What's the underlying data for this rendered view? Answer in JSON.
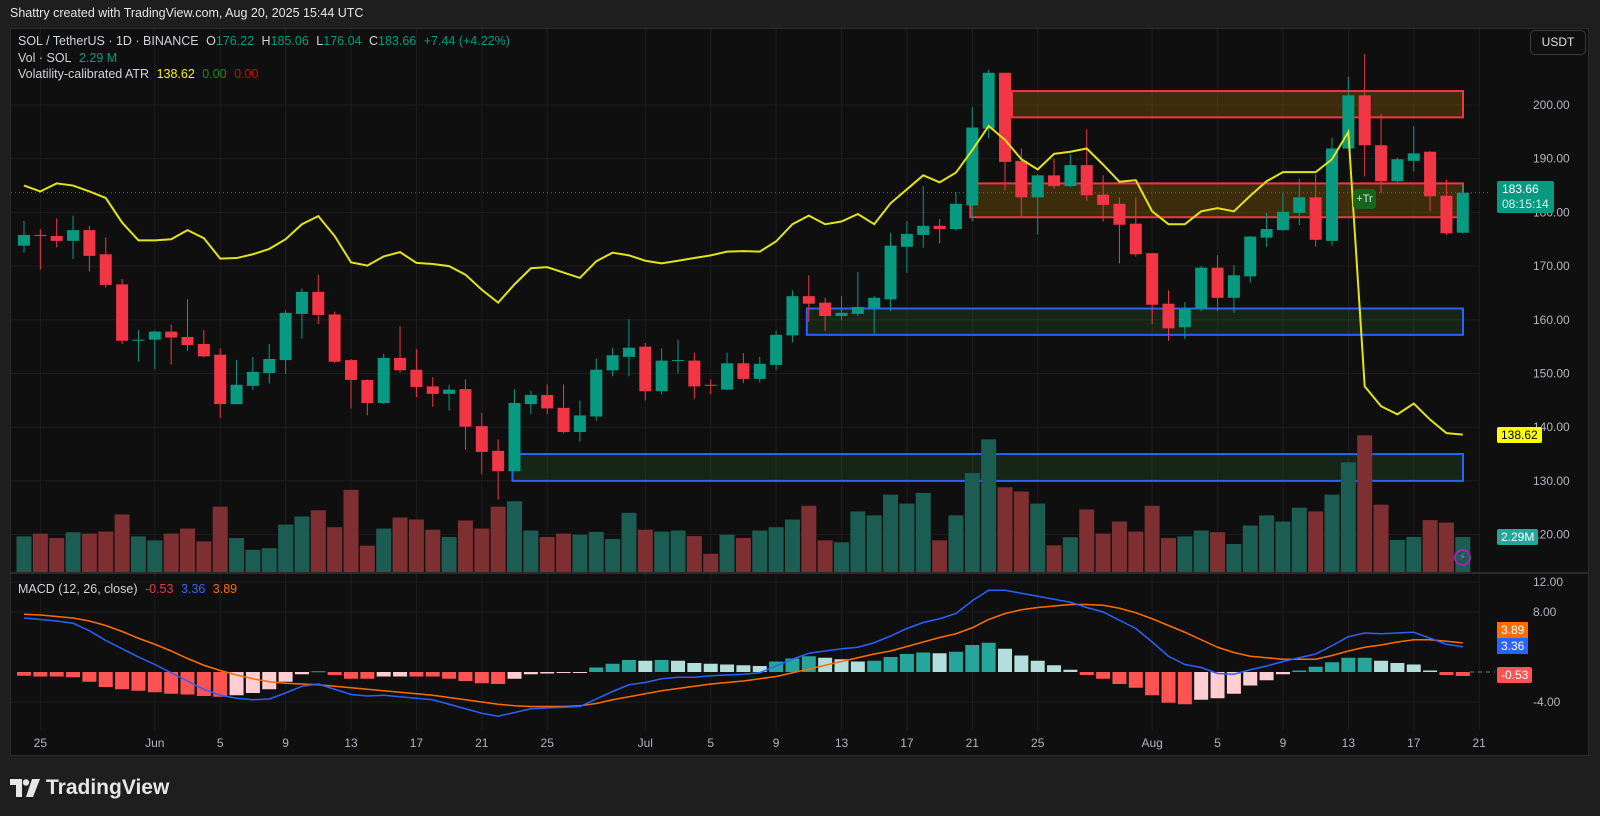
{
  "header": {
    "attribution": "Shattry created with TradingView.com, Aug 20, 2025 15:44 UTC"
  },
  "legend": {
    "symbol": "SOL / TetherUS · 1D · BINANCE",
    "o_label": "O",
    "o": "176.22",
    "h_label": "H",
    "h": "185.06",
    "l_label": "L",
    "l": "176.04",
    "c_label": "C",
    "c": "183.66",
    "change": "+7.44 (+4.22%)",
    "vol_label": "Vol · SOL",
    "vol": "2.29 M",
    "atr_label": "Volatility-calibrated ATR",
    "atr": "138.62",
    "atr_v2": "0.00",
    "atr_v3": "0.00",
    "macd_label": "MACD (12, 26, close)",
    "macd_hist": "-0.53",
    "macd": "3.36",
    "macd_signal": "3.89"
  },
  "toolbar": {
    "currency": "USDT"
  },
  "badges": {
    "trade": "+Tr",
    "price": "183.66",
    "countdown": "08:15:14",
    "atr": "138.62",
    "volume": "2.29M",
    "macd_signal": "3.89",
    "macd": "3.36",
    "macd_hist": "-0.53"
  },
  "footer": {
    "brand": "TradingView"
  },
  "colors": {
    "up": "#089981",
    "down": "#f23645",
    "vol_up": "#1b5c53",
    "vol_down": "#7d2f32",
    "atr": "#e3e31a",
    "macd": "#2962ff",
    "signal": "#ff6d00",
    "hist_up_strong": "#26a69a",
    "hist_up_weak": "#b2dfdb",
    "hist_down_strong": "#ff5252",
    "hist_down_weak": "#ffcdd2",
    "zone_red": "#f23645",
    "zone_blue": "#2962ff"
  },
  "chart_data": [
    {
      "type": "candlestick",
      "timeframe": "1D",
      "price_axis": {
        "ticks": [
          200,
          190,
          180,
          170,
          160,
          150,
          140,
          130,
          120
        ],
        "labels": [
          "200.00",
          "190.00",
          "180.00",
          "170.00",
          "160.00",
          "150.00",
          "140.00",
          "130.00",
          "120.00"
        ]
      },
      "x_ticks": [
        [
          "2025-05-25",
          "25"
        ],
        [
          "2025-06-01",
          "Jun"
        ],
        [
          "2025-06-05",
          "5"
        ],
        [
          "2025-06-09",
          "9"
        ],
        [
          "2025-06-13",
          "13"
        ],
        [
          "2025-06-17",
          "17"
        ],
        [
          "2025-06-21",
          "21"
        ],
        [
          "2025-06-25",
          "25"
        ],
        [
          "2025-07-01",
          "Jul"
        ],
        [
          "2025-07-05",
          "5"
        ],
        [
          "2025-07-09",
          "9"
        ],
        [
          "2025-07-13",
          "13"
        ],
        [
          "2025-07-17",
          "17"
        ],
        [
          "2025-07-21",
          "21"
        ],
        [
          "2025-07-25",
          "25"
        ],
        [
          "2025-08-01",
          "Aug"
        ],
        [
          "2025-08-05",
          "5"
        ],
        [
          "2025-08-09",
          "9"
        ],
        [
          "2025-08-13",
          "13"
        ],
        [
          "2025-08-17",
          "17"
        ],
        [
          "2025-08-21",
          "21"
        ]
      ],
      "candle_fields": [
        "date",
        "open",
        "high",
        "low",
        "close",
        "volume_M"
      ],
      "candles": [
        [
          "2025-05-24",
          173.8,
          178.4,
          172.5,
          175.8,
          2.33
        ],
        [
          "2025-05-25",
          175.8,
          176.9,
          169.3,
          175.6,
          2.51
        ],
        [
          "2025-05-26",
          175.6,
          178.9,
          173.5,
          174.7,
          2.22
        ],
        [
          "2025-05-27",
          174.7,
          179.4,
          171.3,
          176.7,
          2.6
        ],
        [
          "2025-05-28",
          176.7,
          177.5,
          169.0,
          171.9,
          2.51
        ],
        [
          "2025-05-29",
          172.2,
          175.3,
          166.0,
          166.5,
          2.64
        ],
        [
          "2025-05-30",
          166.6,
          167.6,
          155.5,
          156.1,
          3.76
        ],
        [
          "2025-05-31",
          156.1,
          158.1,
          152.2,
          156.3,
          2.33
        ],
        [
          "2025-06-01",
          156.3,
          158.0,
          150.8,
          157.8,
          2.07
        ],
        [
          "2025-06-02",
          157.8,
          159.1,
          151.7,
          156.7,
          2.51
        ],
        [
          "2025-06-03",
          156.8,
          163.8,
          154.2,
          155.3,
          2.84
        ],
        [
          "2025-06-04",
          155.5,
          158.1,
          153.0,
          153.2,
          2.0
        ],
        [
          "2025-06-05",
          153.5,
          154.7,
          141.7,
          144.3,
          4.27
        ],
        [
          "2025-06-06",
          144.3,
          152.5,
          144.3,
          147.9,
          2.22
        ],
        [
          "2025-06-07",
          147.7,
          153.1,
          146.9,
          150.3,
          1.45
        ],
        [
          "2025-06-08",
          150.1,
          155.5,
          148.1,
          152.7,
          1.56
        ],
        [
          "2025-06-09",
          152.5,
          161.8,
          149.9,
          161.3,
          3.1
        ],
        [
          "2025-06-10",
          161.1,
          165.8,
          156.5,
          165.2,
          3.63
        ],
        [
          "2025-06-11",
          165.2,
          168.4,
          159.2,
          160.9,
          4.03
        ],
        [
          "2025-06-12",
          161.0,
          161.5,
          152.0,
          152.2,
          2.93
        ],
        [
          "2025-06-13",
          152.5,
          152.7,
          143.5,
          148.8,
          5.37
        ],
        [
          "2025-06-14",
          148.8,
          148.9,
          142.2,
          144.5,
          1.72
        ],
        [
          "2025-06-15",
          144.5,
          153.7,
          144.3,
          152.9,
          2.84
        ],
        [
          "2025-06-16",
          152.9,
          158.8,
          150.2,
          150.6,
          3.56
        ],
        [
          "2025-06-17",
          150.7,
          154.5,
          145.6,
          147.5,
          3.43
        ],
        [
          "2025-06-18",
          147.6,
          149.3,
          143.8,
          146.2,
          2.77
        ],
        [
          "2025-06-19",
          146.2,
          147.9,
          143.1,
          147.0,
          2.29
        ],
        [
          "2025-06-20",
          147.1,
          148.9,
          135.8,
          140.1,
          3.37
        ],
        [
          "2025-06-21",
          140.2,
          142.7,
          131.2,
          135.4,
          2.84
        ],
        [
          "2025-06-22",
          135.6,
          137.7,
          126.5,
          131.8,
          4.27
        ],
        [
          "2025-06-23",
          131.8,
          147.1,
          131.8,
          144.5,
          4.62
        ],
        [
          "2025-06-24",
          144.3,
          146.8,
          142.4,
          146.0,
          2.71
        ],
        [
          "2025-06-25",
          146.0,
          148.0,
          142.4,
          143.5,
          2.29
        ],
        [
          "2025-06-26",
          143.6,
          148.0,
          138.8,
          139.1,
          2.51
        ],
        [
          "2025-06-27",
          139.1,
          145.0,
          137.3,
          142.2,
          2.44
        ],
        [
          "2025-06-28",
          142.0,
          152.8,
          141.2,
          150.7,
          2.62
        ],
        [
          "2025-06-29",
          150.6,
          154.8,
          149.5,
          153.4,
          2.16
        ],
        [
          "2025-06-30",
          153.1,
          160.1,
          149.5,
          154.8,
          3.87
        ],
        [
          "2025-07-01",
          155.0,
          155.7,
          145.0,
          146.7,
          2.77
        ],
        [
          "2025-07-02",
          146.7,
          154.7,
          146.1,
          152.4,
          2.64
        ],
        [
          "2025-07-03",
          152.4,
          156.3,
          150.0,
          152.5,
          2.71
        ],
        [
          "2025-07-04",
          152.4,
          153.9,
          145.3,
          147.6,
          2.35
        ],
        [
          "2025-07-05",
          147.9,
          148.9,
          146.1,
          147.8,
          1.19
        ],
        [
          "2025-07-06",
          147.0,
          153.9,
          146.9,
          151.9,
          2.44
        ],
        [
          "2025-07-07",
          151.9,
          153.8,
          148.2,
          149.0,
          2.22
        ],
        [
          "2025-07-08",
          149.0,
          153.1,
          148.3,
          151.8,
          2.71
        ],
        [
          "2025-07-09",
          151.6,
          158.0,
          150.6,
          157.2,
          2.93
        ],
        [
          "2025-07-10",
          157.1,
          165.5,
          155.8,
          164.4,
          3.43
        ],
        [
          "2025-07-11",
          164.4,
          168.3,
          159.6,
          163.0,
          4.33
        ],
        [
          "2025-07-12",
          163.2,
          164.1,
          157.9,
          160.7,
          2.07
        ],
        [
          "2025-07-13",
          160.7,
          164.4,
          159.9,
          161.3,
          1.94
        ],
        [
          "2025-07-14",
          161.1,
          168.9,
          160.7,
          162.4,
          3.96
        ],
        [
          "2025-07-15",
          162.2,
          164.4,
          157.4,
          164.1,
          3.7
        ],
        [
          "2025-07-16",
          163.8,
          176.2,
          161.6,
          173.8,
          5.06
        ],
        [
          "2025-07-17",
          173.6,
          178.4,
          168.8,
          176.0,
          4.47
        ],
        [
          "2025-07-18",
          175.8,
          184.9,
          173.4,
          177.5,
          5.17
        ],
        [
          "2025-07-19",
          177.5,
          178.8,
          174.2,
          176.9,
          2.07
        ],
        [
          "2025-07-20",
          176.9,
          183.8,
          176.6,
          181.6,
          3.7
        ],
        [
          "2025-07-21",
          181.3,
          199.6,
          178.3,
          195.8,
          6.47
        ],
        [
          "2025-07-22",
          195.6,
          206.6,
          193.8,
          206.0,
          8.67
        ],
        [
          "2025-07-23",
          206.0,
          206.0,
          184.1,
          189.4,
          5.54
        ],
        [
          "2025-07-24",
          189.6,
          191.9,
          179.3,
          182.8,
          5.26
        ],
        [
          "2025-07-25",
          182.8,
          187.1,
          175.9,
          186.9,
          4.47
        ],
        [
          "2025-07-26",
          186.9,
          190.0,
          184.4,
          184.9,
          1.74
        ],
        [
          "2025-07-27",
          184.9,
          190.8,
          184.7,
          188.8,
          2.27
        ],
        [
          "2025-07-28",
          188.8,
          195.5,
          182.2,
          183.2,
          4.09
        ],
        [
          "2025-07-29",
          183.3,
          186.9,
          178.3,
          181.4,
          2.51
        ],
        [
          "2025-07-30",
          181.6,
          182.8,
          170.5,
          177.7,
          3.3
        ],
        [
          "2025-07-31",
          177.9,
          182.8,
          171.8,
          172.2,
          2.64
        ],
        [
          "2025-08-01",
          172.4,
          172.4,
          159.2,
          162.8,
          4.33
        ],
        [
          "2025-08-02",
          163.0,
          165.5,
          156.1,
          158.4,
          2.22
        ],
        [
          "2025-08-03",
          158.6,
          163.3,
          156.4,
          162.1,
          2.33
        ],
        [
          "2025-08-04",
          162.1,
          170.0,
          161.6,
          169.7,
          2.71
        ],
        [
          "2025-08-05",
          169.7,
          172.0,
          161.6,
          164.1,
          2.6
        ],
        [
          "2025-08-06",
          164.1,
          170.2,
          161.3,
          168.3,
          1.83
        ],
        [
          "2025-08-07",
          168.1,
          175.6,
          166.9,
          175.5,
          3.04
        ],
        [
          "2025-08-08",
          175.3,
          179.9,
          173.6,
          176.9,
          3.7
        ],
        [
          "2025-08-09",
          176.7,
          183.6,
          176.6,
          180.1,
          3.3
        ],
        [
          "2025-08-10",
          179.9,
          186.3,
          177.6,
          182.8,
          4.2
        ],
        [
          "2025-08-11",
          182.8,
          187.1,
          173.6,
          174.9,
          3.96
        ],
        [
          "2025-08-12",
          174.7,
          193.9,
          173.8,
          191.9,
          5.06
        ],
        [
          "2025-08-13",
          191.9,
          205.3,
          191.8,
          201.8,
          7.17
        ],
        [
          "2025-08-14",
          201.8,
          209.5,
          186.7,
          192.5,
          8.93
        ],
        [
          "2025-08-15",
          192.5,
          198.3,
          183.6,
          185.8,
          4.4
        ],
        [
          "2025-08-16",
          185.8,
          190.2,
          185.5,
          189.9,
          2.09
        ],
        [
          "2025-08-17",
          189.6,
          196.1,
          187.6,
          191.0,
          2.29
        ],
        [
          "2025-08-18",
          191.3,
          191.4,
          180.2,
          183.0,
          3.39
        ],
        [
          "2025-08-19",
          183.1,
          186.1,
          175.8,
          176.1,
          3.23
        ],
        [
          "2025-08-20",
          176.22,
          185.06,
          176.04,
          183.66,
          2.29
        ]
      ],
      "atr_line": [
        185.0,
        183.9,
        185.4,
        185.0,
        183.9,
        182.7,
        178.1,
        174.8,
        174.8,
        175.0,
        176.7,
        175.2,
        171.4,
        171.5,
        172.2,
        173.2,
        175.0,
        177.8,
        179.3,
        175.6,
        170.7,
        170.1,
        171.8,
        172.6,
        170.6,
        170.4,
        170.0,
        168.4,
        165.6,
        163.2,
        166.6,
        169.6,
        169.8,
        168.8,
        167.8,
        170.9,
        172.5,
        172.0,
        171.0,
        170.5,
        171.0,
        171.5,
        172.0,
        172.7,
        172.8,
        172.7,
        174.6,
        177.8,
        179.4,
        177.8,
        178.3,
        179.7,
        177.8,
        181.7,
        184.3,
        186.9,
        185.6,
        187.4,
        191.6,
        196.1,
        193.5,
        189.9,
        188.0,
        190.9,
        191.3,
        191.9,
        188.9,
        185.7,
        186.0,
        180.2,
        177.8,
        177.8,
        180.2,
        180.8,
        180.2,
        183.1,
        185.8,
        187.5,
        187.5,
        187.5,
        189.9,
        195.0,
        147.6,
        143.9,
        142.4,
        144.4,
        141.4,
        138.9,
        138.62
      ],
      "last_price": 183.66,
      "zones": [
        {
          "color": "red",
          "from": "2025-07-23",
          "low": 197.7,
          "high": 202.6
        },
        {
          "color": "red",
          "from": "2025-07-21",
          "low": 179.1,
          "high": 185.4
        },
        {
          "color": "blue",
          "from": "2025-07-11",
          "low": 157.2,
          "high": 162.1
        },
        {
          "color": "blue",
          "from": "2025-06-23",
          "low": 130.0,
          "high": 135.0
        }
      ]
    },
    {
      "type": "line+histogram",
      "name": "MACD (12, 26, close)",
      "y_ticks": [
        12,
        8,
        -4
      ],
      "y_labels": [
        "12.00",
        "8.00",
        "-4.00"
      ],
      "macd": [
        7.2,
        7.0,
        6.8,
        6.5,
        5.5,
        4.2,
        3.1,
        2.0,
        1.0,
        -0.1,
        -1.2,
        -2.3,
        -3.1,
        -3.5,
        -3.7,
        -3.6,
        -2.8,
        -1.9,
        -1.6,
        -2.3,
        -3.0,
        -3.2,
        -3.1,
        -3.3,
        -3.5,
        -3.7,
        -4.3,
        -4.9,
        -5.5,
        -5.9,
        -5.4,
        -4.9,
        -4.8,
        -4.7,
        -4.6,
        -3.6,
        -2.6,
        -1.7,
        -1.4,
        -0.9,
        -0.7,
        -0.7,
        -0.5,
        -0.4,
        -0.3,
        -0.1,
        0.8,
        1.7,
        2.5,
        2.8,
        3.1,
        3.3,
        3.9,
        4.8,
        5.8,
        6.6,
        7.1,
        7.8,
        9.5,
        10.9,
        10.9,
        10.5,
        10.1,
        9.7,
        9.3,
        8.6,
        8.0,
        6.9,
        5.8,
        4.0,
        2.1,
        1.0,
        0.6,
        -0.2,
        -0.3,
        0.3,
        0.8,
        1.4,
        1.9,
        2.4,
        3.5,
        4.7,
        5.2,
        5.1,
        5.2,
        5.3,
        4.5,
        3.7,
        3.36
      ],
      "signal": [
        7.7,
        7.6,
        7.4,
        7.2,
        6.8,
        6.2,
        5.4,
        4.5,
        3.7,
        2.8,
        1.8,
        0.9,
        0.2,
        -0.4,
        -0.9,
        -1.3,
        -1.5,
        -1.6,
        -1.7,
        -1.9,
        -2.1,
        -2.3,
        -2.5,
        -2.7,
        -2.9,
        -3.1,
        -3.4,
        -3.7,
        -4.0,
        -4.3,
        -4.5,
        -4.6,
        -4.6,
        -4.6,
        -4.5,
        -4.2,
        -3.7,
        -3.3,
        -2.9,
        -2.5,
        -2.2,
        -1.9,
        -1.6,
        -1.4,
        -1.2,
        -0.9,
        -0.6,
        -0.1,
        0.4,
        0.9,
        1.4,
        1.9,
        2.4,
        2.8,
        3.4,
        4.0,
        4.6,
        5.1,
        5.9,
        7.0,
        7.8,
        8.3,
        8.6,
        8.8,
        9.0,
        9.0,
        8.9,
        8.5,
        7.9,
        7.1,
        6.2,
        5.3,
        4.3,
        3.3,
        2.6,
        2.1,
        1.9,
        1.7,
        1.7,
        1.7,
        2.2,
        2.8,
        3.3,
        3.6,
        4.0,
        4.3,
        4.3,
        4.1,
        3.89
      ]
    }
  ]
}
